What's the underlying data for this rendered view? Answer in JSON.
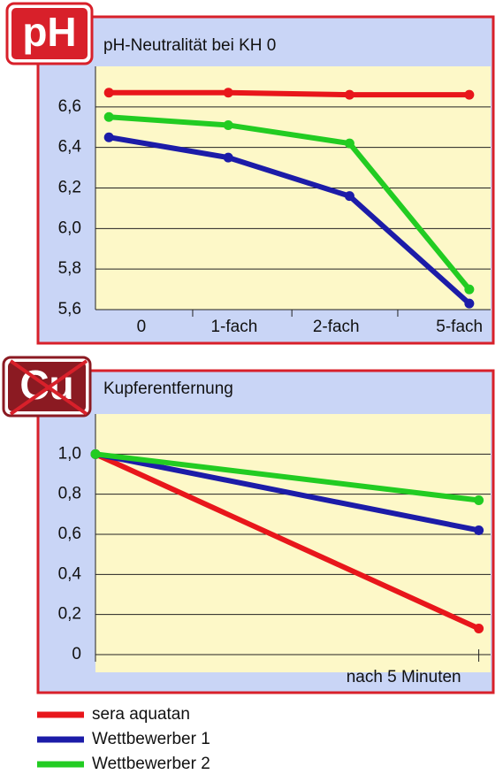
{
  "chart_data": [
    {
      "type": "line",
      "badge": "pH",
      "title": "pH-Neutralität bei KH 0",
      "categories": [
        "0",
        "1-fach",
        "2-fach",
        "5-fach"
      ],
      "series": [
        {
          "name": "sera aquatan",
          "color": "#e8161b",
          "values": [
            6.67,
            6.67,
            6.66,
            6.66
          ]
        },
        {
          "name": "Wettbewerber 1",
          "color": "#1c1ca8",
          "values": [
            6.45,
            6.35,
            6.16,
            5.63
          ]
        },
        {
          "name": "Wettbewerber 2",
          "color": "#22cc22",
          "values": [
            6.55,
            6.51,
            6.42,
            5.7
          ]
        }
      ],
      "ylim": [
        5.6,
        6.8
      ],
      "yticks": [
        {
          "value": 5.6,
          "label": "5,6"
        },
        {
          "value": 5.8,
          "label": "5,8"
        },
        {
          "value": 6.0,
          "label": "6,0"
        },
        {
          "value": 6.2,
          "label": "6,2"
        },
        {
          "value": 6.4,
          "label": "6,4"
        },
        {
          "value": 6.6,
          "label": "6,6"
        }
      ],
      "grid": true
    },
    {
      "type": "line",
      "badge": "Cu",
      "title": "Kupferentfernung",
      "categories": [
        null,
        "nach 5 Minuten"
      ],
      "series": [
        {
          "color": "#e8161b",
          "values": [
            1.0,
            0.13
          ]
        },
        {
          "color": "#1c1ca8",
          "values": [
            1.0,
            0.62
          ]
        },
        {
          "color": "#22cc22",
          "values": [
            1.0,
            0.77
          ]
        }
      ],
      "ylim": [
        0,
        1.2
      ],
      "yticks": [
        0,
        {
          "value": 0.2,
          "label": "0,2"
        },
        {
          "value": 0.4,
          "label": "0,4"
        },
        {
          "value": 0.6,
          "label": "0,6"
        },
        {
          "value": 0.8,
          "label": "0,8"
        },
        {
          "value": 1.0,
          "label": "1,0"
        }
      ],
      "grid": true
    }
  ]
}
